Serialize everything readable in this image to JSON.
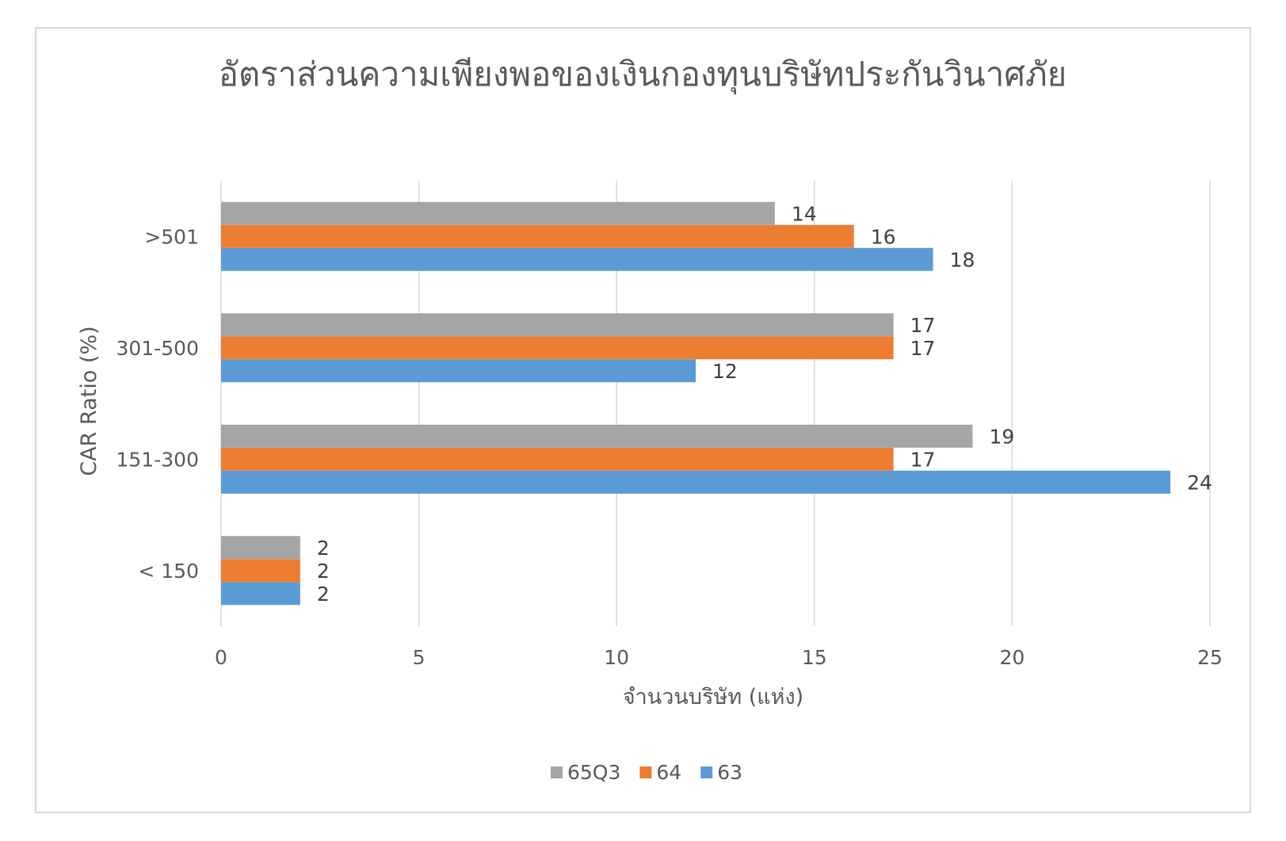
{
  "chart_data": {
    "type": "bar",
    "orientation": "horizontal",
    "title": "อัตราส่วนความเพียงพอของเงินกองทุนบริษัทประกันวินาศภัย",
    "xlabel": "จำนวนบริษัท (แห่ง)",
    "ylabel": "CAR Ratio (%)",
    "xlim": [
      0,
      25
    ],
    "x_ticks": [
      "0",
      "5",
      "10",
      "15",
      "20",
      "25"
    ],
    "categories": [
      "< 150",
      "151-300",
      "301-500",
      ">501"
    ],
    "series": [
      {
        "name": "63",
        "color": "#5b9bd5",
        "values": [
          2,
          24,
          12,
          18
        ]
      },
      {
        "name": "64",
        "color": "#ed7d31",
        "values": [
          2,
          17,
          17,
          16
        ]
      },
      {
        "name": "65Q3",
        "color": "#a5a5a5",
        "values": [
          2,
          19,
          17,
          14
        ]
      }
    ],
    "legend_order": [
      "65Q3",
      "64",
      "63"
    ],
    "legend_position": "bottom",
    "grid": true,
    "data_labels": true
  }
}
